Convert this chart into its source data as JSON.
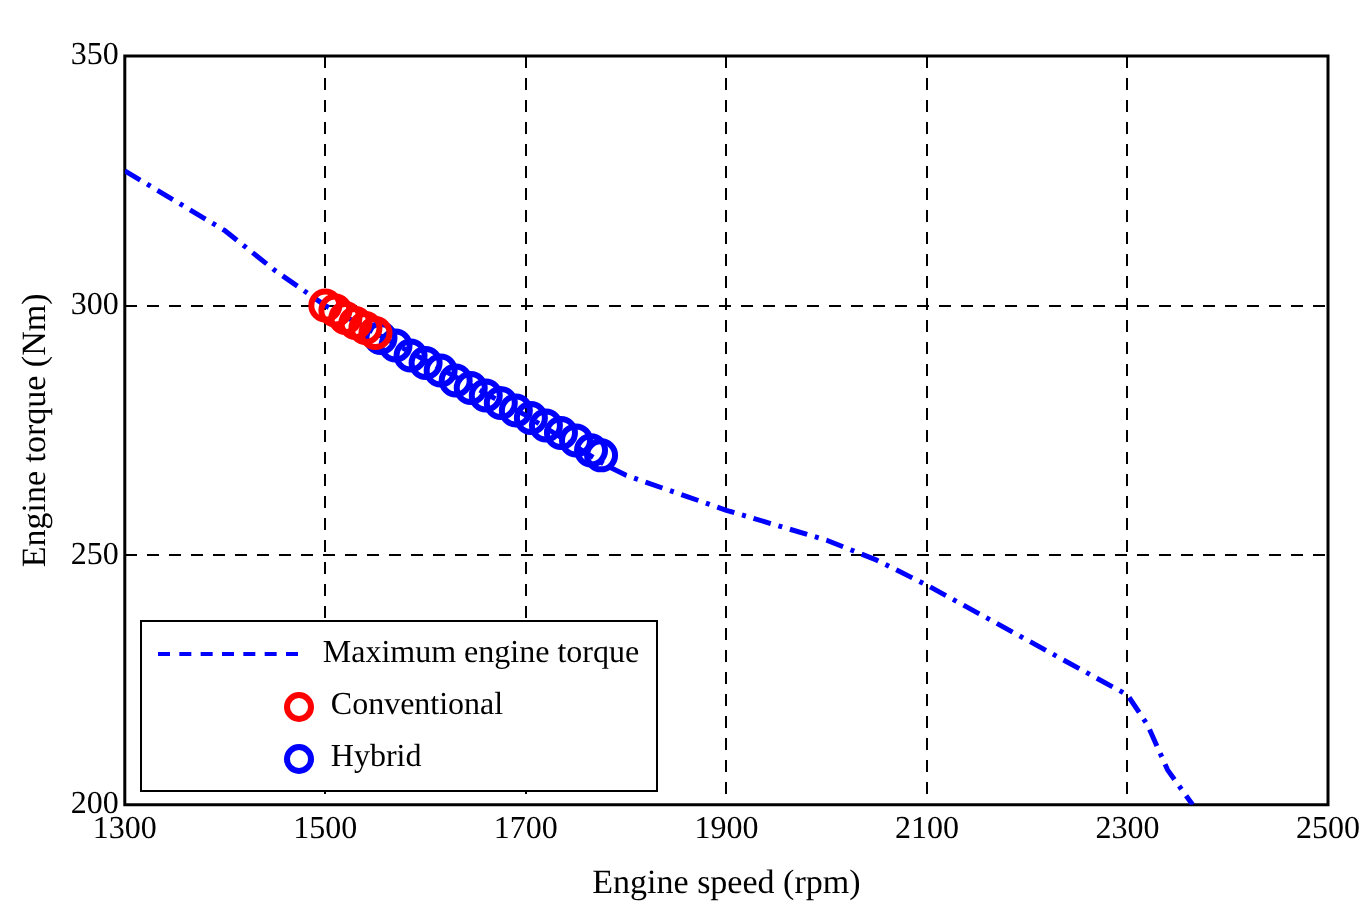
{
  "chart_data": {
    "type": "scatter",
    "xlabel": "Engine speed (rpm)",
    "ylabel": "Engine torque (Nm)",
    "xlim": [
      1300,
      2500
    ],
    "xticks": [
      1300,
      1500,
      1700,
      1900,
      2100,
      2300,
      2500
    ],
    "ylim": [
      200,
      350
    ],
    "yticks": [
      200,
      250,
      300,
      350
    ],
    "grid": true,
    "legend": "bottom left",
    "marker": "circle",
    "series": [
      {
        "name": "Maximum engine torque",
        "type": "line",
        "line_style": "dashed",
        "marker": "none",
        "color": "#0000ff",
        "x": [
          1300,
          1350,
          1400,
          1450,
          1500,
          1600,
          1700,
          1780,
          1800,
          1900,
          2000,
          2050,
          2100,
          2200,
          2300,
          2320,
          2340,
          2365
        ],
        "values": [
          327,
          321,
          315,
          307,
          300,
          289,
          278,
          268,
          266,
          259,
          253,
          249,
          244,
          233,
          222,
          216,
          207,
          200
        ]
      },
      {
        "name": "Conventional",
        "color": "#ff0000",
        "x": [
          1500,
          1510,
          1520,
          1530,
          1540,
          1550
        ],
        "values": [
          300,
          299,
          297.5,
          296.5,
          295.5,
          294.5
        ]
      },
      {
        "name": "Hybrid",
        "color": "#0000ff",
        "x": [
          1555,
          1570,
          1585,
          1600,
          1615,
          1630,
          1645,
          1660,
          1675,
          1690,
          1705,
          1720,
          1735,
          1750,
          1765,
          1775
        ],
        "values": [
          293.5,
          292,
          290,
          288.5,
          287,
          285,
          283.5,
          282,
          280.5,
          279,
          277.5,
          276,
          274.5,
          273,
          271,
          270
        ]
      }
    ]
  }
}
